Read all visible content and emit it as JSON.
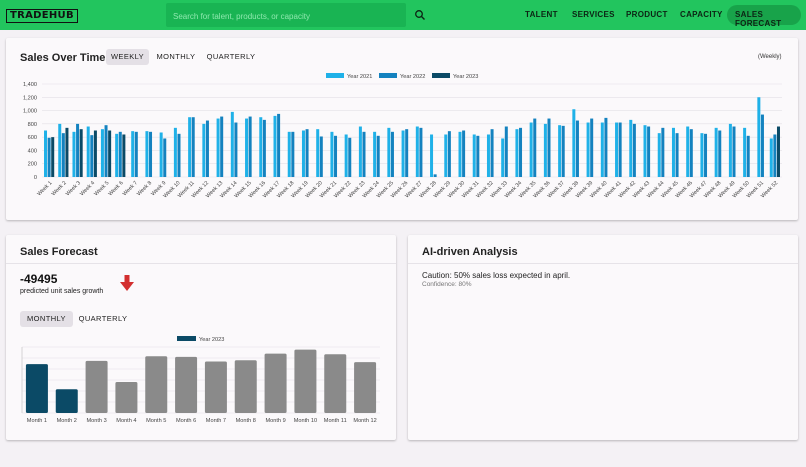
{
  "header": {
    "logo": "TRADEHUB",
    "search_placeholder": "Search for talent, products, or capacity",
    "nav": [
      "TALENT",
      "SERVICES",
      "PRODUCT",
      "CAPACITY",
      "SALES FORECAST"
    ],
    "active_nav": "SALES FORECAST"
  },
  "sales_over_time": {
    "title": "Sales Over Time",
    "tabs": [
      "WEEKLY",
      "MONTHLY",
      "QUARTERLY"
    ],
    "active_tab": "WEEKLY",
    "period_label": "(Weekly)"
  },
  "sales_forecast": {
    "title": "Sales Forecast",
    "value": "-49495",
    "caption": "predicted unit sales growth",
    "trend": "down-arrow",
    "tabs": [
      "MONTHLY",
      "QUARTERLY"
    ],
    "active_tab": "MONTHLY"
  },
  "analysis": {
    "title": "AI-driven Analysis",
    "message": "Caution: 50% sales loss expected in april.",
    "confidence": "Confidence: 80%"
  },
  "colors": {
    "brand": "#22c55e",
    "year_2021": "#1fb1e8",
    "year_2022": "#1482bf",
    "year_2023": "#0b4a66",
    "forecast": "#8a8a8a",
    "down": "#d32f2f"
  },
  "chart_data": [
    {
      "type": "bar",
      "ylim": [
        0,
        1400
      ],
      "yticks": [
        "0",
        "200",
        "400",
        "600",
        "800",
        "1,000",
        "1,200",
        "1,400"
      ],
      "legend_position": "top",
      "categories": [
        "Week 1",
        "Week 2",
        "Week 3",
        "Week 4",
        "Week 5",
        "Week 6",
        "Week 7",
        "Week 8",
        "Week 9",
        "Week 10",
        "Week 11",
        "Week 12",
        "Week 13",
        "Week 14",
        "Week 15",
        "Week 16",
        "Week 17",
        "Week 18",
        "Week 19",
        "Week 20",
        "Week 21",
        "Week 22",
        "Week 23",
        "Week 24",
        "Week 25",
        "Week 26",
        "Week 27",
        "Week 28",
        "Week 29",
        "Week 30",
        "Week 31",
        "Week 32",
        "Week 33",
        "Week 34",
        "Week 35",
        "Week 36",
        "Week 37",
        "Week 38",
        "Week 39",
        "Week 40",
        "Week 41",
        "Week 42",
        "Week 43",
        "Week 44",
        "Week 45",
        "Week 46",
        "Week 47",
        "Week 48",
        "Week 49",
        "Week 50",
        "Week 51",
        "Week 52"
      ],
      "series": [
        {
          "name": "Year 2021",
          "values": [
            700,
            800,
            680,
            760,
            720,
            650,
            690,
            690,
            670,
            740,
            900,
            800,
            880,
            980,
            880,
            900,
            920,
            680,
            700,
            720,
            680,
            640,
            760,
            680,
            740,
            700,
            760,
            640,
            640,
            680,
            640,
            640,
            580,
            720,
            820,
            800,
            780,
            1020,
            820,
            820,
            820,
            860,
            780,
            660,
            740,
            760,
            660,
            740,
            800,
            740,
            1200,
            580
          ]
        },
        {
          "name": "Year 2022",
          "values": [
            590,
            660,
            800,
            630,
            780,
            680,
            680,
            680,
            580,
            650,
            900,
            850,
            910,
            820,
            910,
            860,
            950,
            680,
            720,
            610,
            620,
            590,
            680,
            620,
            680,
            720,
            740,
            40,
            690,
            700,
            620,
            720,
            760,
            740,
            880,
            880,
            770,
            850,
            880,
            890,
            820,
            800,
            760,
            740,
            660,
            720,
            650,
            700,
            760,
            620,
            940,
            640
          ]
        },
        {
          "name": "Year 2023",
          "values": [
            600,
            740,
            720,
            700,
            700,
            640,
            null,
            null,
            null,
            null,
            null,
            null,
            null,
            null,
            null,
            null,
            null,
            null,
            null,
            null,
            null,
            null,
            null,
            null,
            null,
            null,
            null,
            null,
            null,
            null,
            null,
            null,
            null,
            null,
            null,
            null,
            null,
            null,
            null,
            null,
            null,
            null,
            null,
            null,
            null,
            null,
            null,
            null,
            null,
            null,
            null,
            760
          ]
        }
      ]
    },
    {
      "type": "bar",
      "categories": [
        "Month 1",
        "Month 2",
        "Month 3",
        "Month 4",
        "Month 5",
        "Month 6",
        "Month 7",
        "Month 8",
        "Month 9",
        "Month 10",
        "Month 11",
        "Month 12"
      ],
      "legend": [
        "Year 2023"
      ],
      "values": [
        740,
        360,
        790,
        470,
        860,
        850,
        780,
        800,
        900,
        960,
        890,
        770
      ],
      "highlight": [
        true,
        true,
        false,
        false,
        false,
        false,
        false,
        false,
        false,
        false,
        false,
        false
      ],
      "ymax": 1000
    }
  ]
}
